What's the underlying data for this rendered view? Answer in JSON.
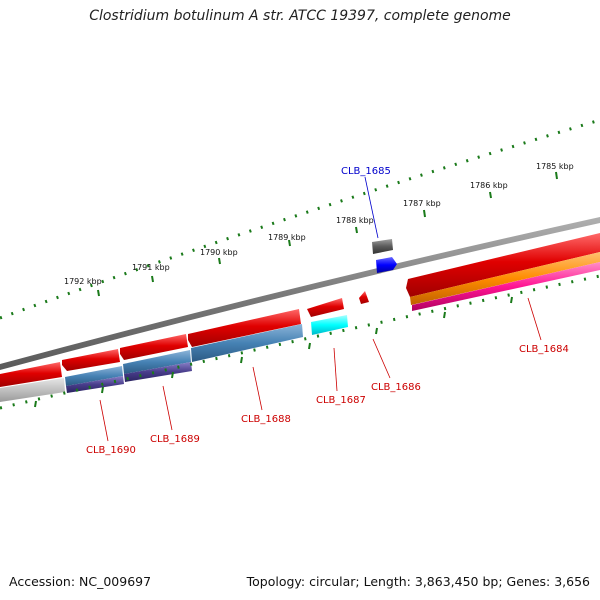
{
  "title": "Clostridium botulinum A str. ATCC 19397, complete genome",
  "footer": {
    "accession": "Accession: NC_009697",
    "summary": "Topology: circular; Length: 3,863,450 bp; Genes: 3,656"
  },
  "kbp_labels": [
    "1785 kbp",
    "1786 kbp",
    "1787 kbp",
    "1788 kbp",
    "1789 kbp",
    "1790 kbp",
    "1791 kbp",
    "1792 kbp"
  ],
  "gene_labels": {
    "clb_1685": "CLB_1685",
    "clb_1684": "CLB_1684",
    "clb_1686": "CLB_1686",
    "clb_1687": "CLB_1687",
    "clb_1688": "CLB_1688",
    "clb_1689": "CLB_1689",
    "clb_1690": "CLB_1690"
  },
  "colors": {
    "tick": "#1a7a1a",
    "backbone": "#808080",
    "cds": "#e00000",
    "label_red": "#cc0000",
    "label_blue": "#0000cc",
    "steelblue": "#4682b4",
    "darkslateblue": "#483d8b",
    "cyan": "#00ffff",
    "blue": "#0000ff",
    "orange": "#ff8c00",
    "deeppink": "#ff1493",
    "gray": "#666666",
    "silver": "#c0c0c0"
  }
}
